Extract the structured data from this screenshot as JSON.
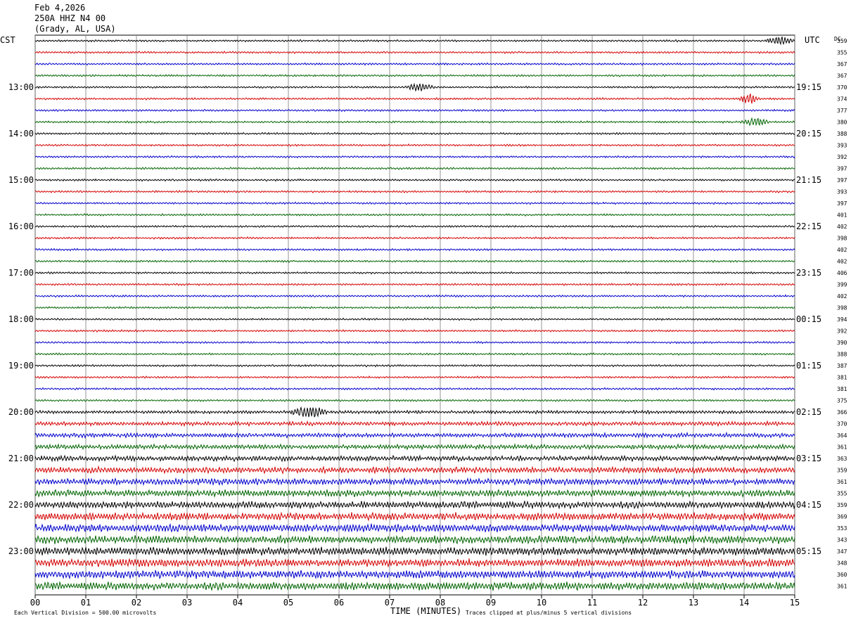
{
  "header": {
    "date": "Feb 4,2026",
    "station": "250A HHZ N4 00",
    "location": "(Grady, AL, USA)"
  },
  "chart_data": {
    "type": "line",
    "title": "Feb 4,2026",
    "left_timezone": "CST",
    "right_timezone": "UTC",
    "dc_label": "DC",
    "xlabel": "TIME (MINUTES)",
    "x_ticks": [
      "00",
      "01",
      "02",
      "03",
      "04",
      "05",
      "06",
      "07",
      "08",
      "09",
      "10",
      "11",
      "12",
      "13",
      "14",
      "15"
    ],
    "xlim": [
      0,
      15
    ],
    "left_hour_labels": [
      "13:00",
      "14:00",
      "15:00",
      "16:00",
      "17:00",
      "18:00",
      "19:00",
      "20:00",
      "21:00",
      "22:00",
      "23:00"
    ],
    "right_hour_labels": [
      "19:15",
      "20:15",
      "21:15",
      "22:15",
      "23:15",
      "00:15",
      "01:15",
      "02:15",
      "03:15",
      "04:15",
      "05:15"
    ],
    "first_hour_label_row": 4,
    "trace_colors": [
      "#000000",
      "#d40000",
      "#0000cc",
      "#006400"
    ],
    "dc_offsets": [
      359,
      355,
      367,
      367,
      370,
      374,
      377,
      380,
      388,
      393,
      392,
      397,
      397,
      393,
      397,
      401,
      402,
      398,
      402,
      402,
      406,
      399,
      402,
      398,
      394,
      392,
      390,
      388,
      387,
      381,
      381,
      375,
      366,
      370,
      364,
      361,
      363,
      359,
      361,
      355,
      359,
      369,
      353,
      343,
      347,
      348,
      360,
      361
    ],
    "amplitudes": [
      1,
      1,
      1,
      1,
      1,
      1,
      1,
      1,
      1,
      1,
      1,
      1,
      1,
      1,
      1,
      1,
      1,
      1,
      1,
      1,
      1,
      1,
      1,
      1,
      1,
      1,
      1,
      1,
      1,
      1,
      1,
      1,
      1.6,
      2,
      2.2,
      2.4,
      2.6,
      3,
      3.2,
      3.4,
      3.6,
      3.8,
      4,
      4,
      4,
      4,
      4,
      4
    ],
    "events": [
      {
        "row": 0,
        "start_min": 14.4,
        "end_min": 15.0,
        "amp": 3
      },
      {
        "row": 4,
        "start_min": 7.3,
        "end_min": 7.9,
        "amp": 3
      },
      {
        "row": 5,
        "start_min": 13.9,
        "end_min": 14.3,
        "amp": 4
      },
      {
        "row": 7,
        "start_min": 13.9,
        "end_min": 14.5,
        "amp": 3
      },
      {
        "row": 32,
        "start_min": 5.0,
        "end_min": 5.8,
        "amp": 5
      },
      {
        "row": 42,
        "start_min": 0.9,
        "end_min": 1.2,
        "amp": 3
      }
    ]
  },
  "footer": {
    "scale_note": "Each Vertical Division =  500.00 microvolts",
    "clip_note": "Traces clipped at plus/minus 5 vertical divisions"
  }
}
